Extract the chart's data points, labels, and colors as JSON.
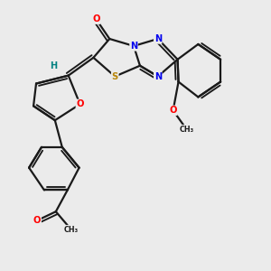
{
  "bg_color": "#ebebeb",
  "atom_colors": {
    "O": "#ff0000",
    "N": "#0000ee",
    "S": "#b8860b",
    "H": "#008080"
  },
  "bond_color": "#1a1a1a",
  "bond_width": 1.6
}
